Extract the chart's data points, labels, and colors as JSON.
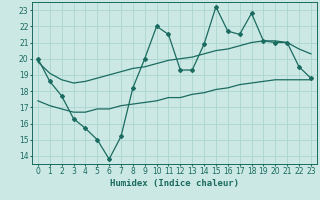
{
  "title": "",
  "xlabel": "Humidex (Indice chaleur)",
  "xlim": [
    -0.5,
    23.5
  ],
  "ylim": [
    13.5,
    23.5
  ],
  "xticks": [
    0,
    1,
    2,
    3,
    4,
    5,
    6,
    7,
    8,
    9,
    10,
    11,
    12,
    13,
    14,
    15,
    16,
    17,
    18,
    19,
    20,
    21,
    22,
    23
  ],
  "yticks": [
    14,
    15,
    16,
    17,
    18,
    19,
    20,
    21,
    22,
    23
  ],
  "bg_color": "#cce8e4",
  "line_color": "#1a6b60",
  "grid_color": "#b0d8d2",
  "main_x": [
    0,
    1,
    2,
    3,
    4,
    5,
    6,
    7,
    8,
    9,
    10,
    11,
    12,
    13,
    14,
    15,
    16,
    17,
    18,
    19,
    20,
    21,
    22,
    23
  ],
  "main_y": [
    20.0,
    18.6,
    17.7,
    16.3,
    15.7,
    15.0,
    13.8,
    15.2,
    18.2,
    20.0,
    22.0,
    21.5,
    19.3,
    19.3,
    20.9,
    23.2,
    21.7,
    21.5,
    22.8,
    21.1,
    21.0,
    21.0,
    19.5,
    18.8
  ],
  "upper_x": [
    0,
    1,
    2,
    3,
    4,
    5,
    6,
    7,
    8,
    9,
    10,
    11,
    12,
    13,
    14,
    15,
    16,
    17,
    18,
    19,
    20,
    21,
    22,
    23
  ],
  "upper_y": [
    19.8,
    19.1,
    18.7,
    18.5,
    18.6,
    18.8,
    19.0,
    19.2,
    19.4,
    19.5,
    19.7,
    19.9,
    20.0,
    20.1,
    20.3,
    20.5,
    20.6,
    20.8,
    21.0,
    21.1,
    21.1,
    21.0,
    20.6,
    20.3
  ],
  "lower_x": [
    0,
    1,
    2,
    3,
    4,
    5,
    6,
    7,
    8,
    9,
    10,
    11,
    12,
    13,
    14,
    15,
    16,
    17,
    18,
    19,
    20,
    21,
    22,
    23
  ],
  "lower_y": [
    17.4,
    17.1,
    16.9,
    16.7,
    16.7,
    16.9,
    16.9,
    17.1,
    17.2,
    17.3,
    17.4,
    17.6,
    17.6,
    17.8,
    17.9,
    18.1,
    18.2,
    18.4,
    18.5,
    18.6,
    18.7,
    18.7,
    18.7,
    18.7
  ]
}
